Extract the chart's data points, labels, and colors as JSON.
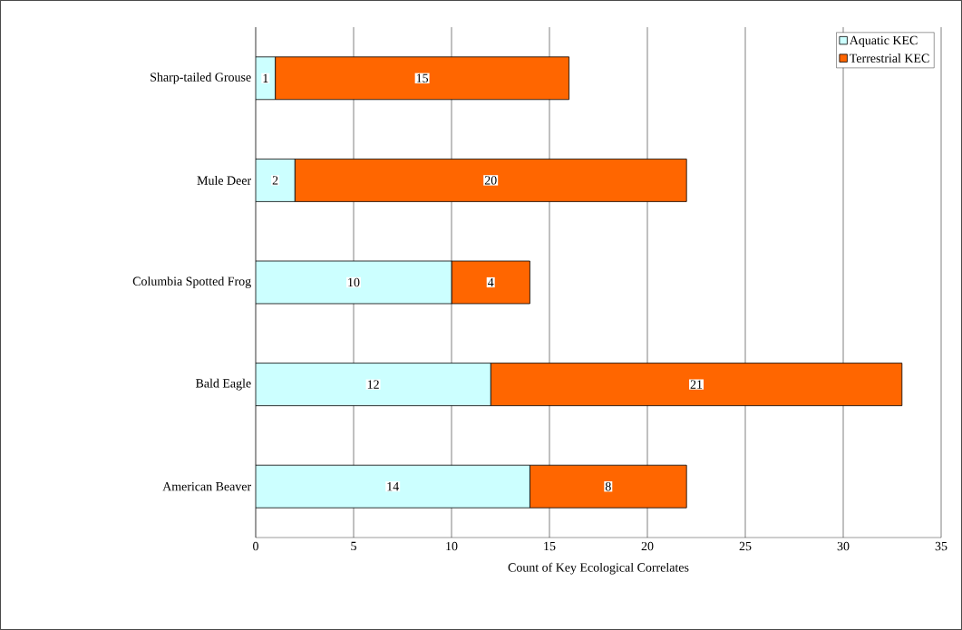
{
  "chart_data": {
    "type": "bar",
    "orientation": "horizontal",
    "stacked": true,
    "categories": [
      "Sharp-tailed Grouse",
      "Mule Deer",
      "Columbia Spotted Frog",
      "Bald Eagle",
      "American Beaver"
    ],
    "series": [
      {
        "name": "Aquatic KEC",
        "color": "#ccffff",
        "values": [
          1,
          2,
          10,
          12,
          14
        ]
      },
      {
        "name": "Terrestrial KEC",
        "color": "#ff6600",
        "values": [
          15,
          20,
          4,
          21,
          8
        ]
      }
    ],
    "xlabel": "Count of Key Ecological Correlates",
    "xlim": [
      0,
      35
    ],
    "xticks": [
      0,
      5,
      10,
      15,
      20,
      25,
      30,
      35
    ],
    "grid": "x",
    "legend": "top right",
    "data_labels": true
  }
}
